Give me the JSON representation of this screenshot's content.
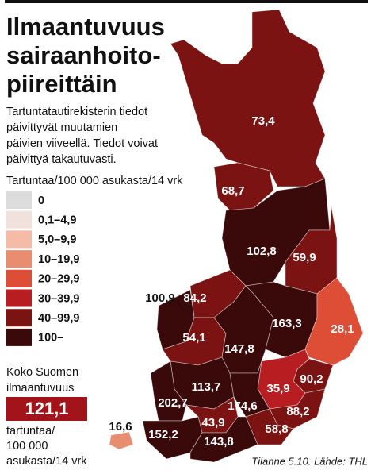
{
  "title": [
    "Ilmaantuvuus",
    "sairaanhoito-",
    "piireittäin"
  ],
  "description": [
    "Tartuntatautirekisterin tiedot",
    "päivittyvät muutamien",
    "päivien viiveellä. Tiedot voivat",
    "päivittyä takautuvasti."
  ],
  "legend": {
    "title": "Tartuntaa/100 000 asukasta/14 vrk",
    "items": [
      {
        "label": "0",
        "color": "#dcdcdc"
      },
      {
        "label": "0,1–4,9",
        "color": "#f1e1dc"
      },
      {
        "label": "5,0–9,9",
        "color": "#f5bba7"
      },
      {
        "label": "10–19,9",
        "color": "#e98d70"
      },
      {
        "label": "20–29,9",
        "color": "#de4e37"
      },
      {
        "label": "30–39,9",
        "color": "#b81d22"
      },
      {
        "label": "40–99,9",
        "color": "#7b1313"
      },
      {
        "label": "100–",
        "color": "#3a0909"
      }
    ]
  },
  "map": {
    "values": [
      73.4,
      68.7,
      102.8,
      59.9,
      100.9,
      84.2,
      54.1,
      147.8,
      163.3,
      28.1,
      90.2,
      35.9,
      113.7,
      202.7,
      174.6,
      88.2,
      43.9,
      58.8,
      152.2,
      143.8,
      16.6
    ],
    "value_labels": [
      "73,4",
      "68,7",
      "102,8",
      "59,9",
      "100,9",
      "84,2",
      "54,1",
      "147,8",
      "163,3",
      "28,1",
      "90,2",
      "35,9",
      "113,7",
      "202,7",
      "174,6",
      "88,2",
      "43,9",
      "58,8",
      "152,2",
      "143,8",
      "16,6"
    ],
    "colors": [
      "#7b1313",
      "#7b1313",
      "#3a0909",
      "#7b1313",
      "#3a0909",
      "#7b1313",
      "#7b1313",
      "#3a0909",
      "#3a0909",
      "#de4e37",
      "#7b1313",
      "#b81d22",
      "#3a0909",
      "#3a0909",
      "#3a0909",
      "#7b1313",
      "#7b1313",
      "#7b1313",
      "#3a0909",
      "#3a0909",
      "#e98d70"
    ]
  },
  "total": {
    "label": [
      "Koko Suomen",
      "ilmaantuvuus"
    ],
    "value": 121.1,
    "value_label": "121,1",
    "unit": [
      "tartuntaa/",
      "100 000",
      "asukasta/14 vrk"
    ]
  },
  "source": "Tilanne 5.10. Lähde: THL"
}
